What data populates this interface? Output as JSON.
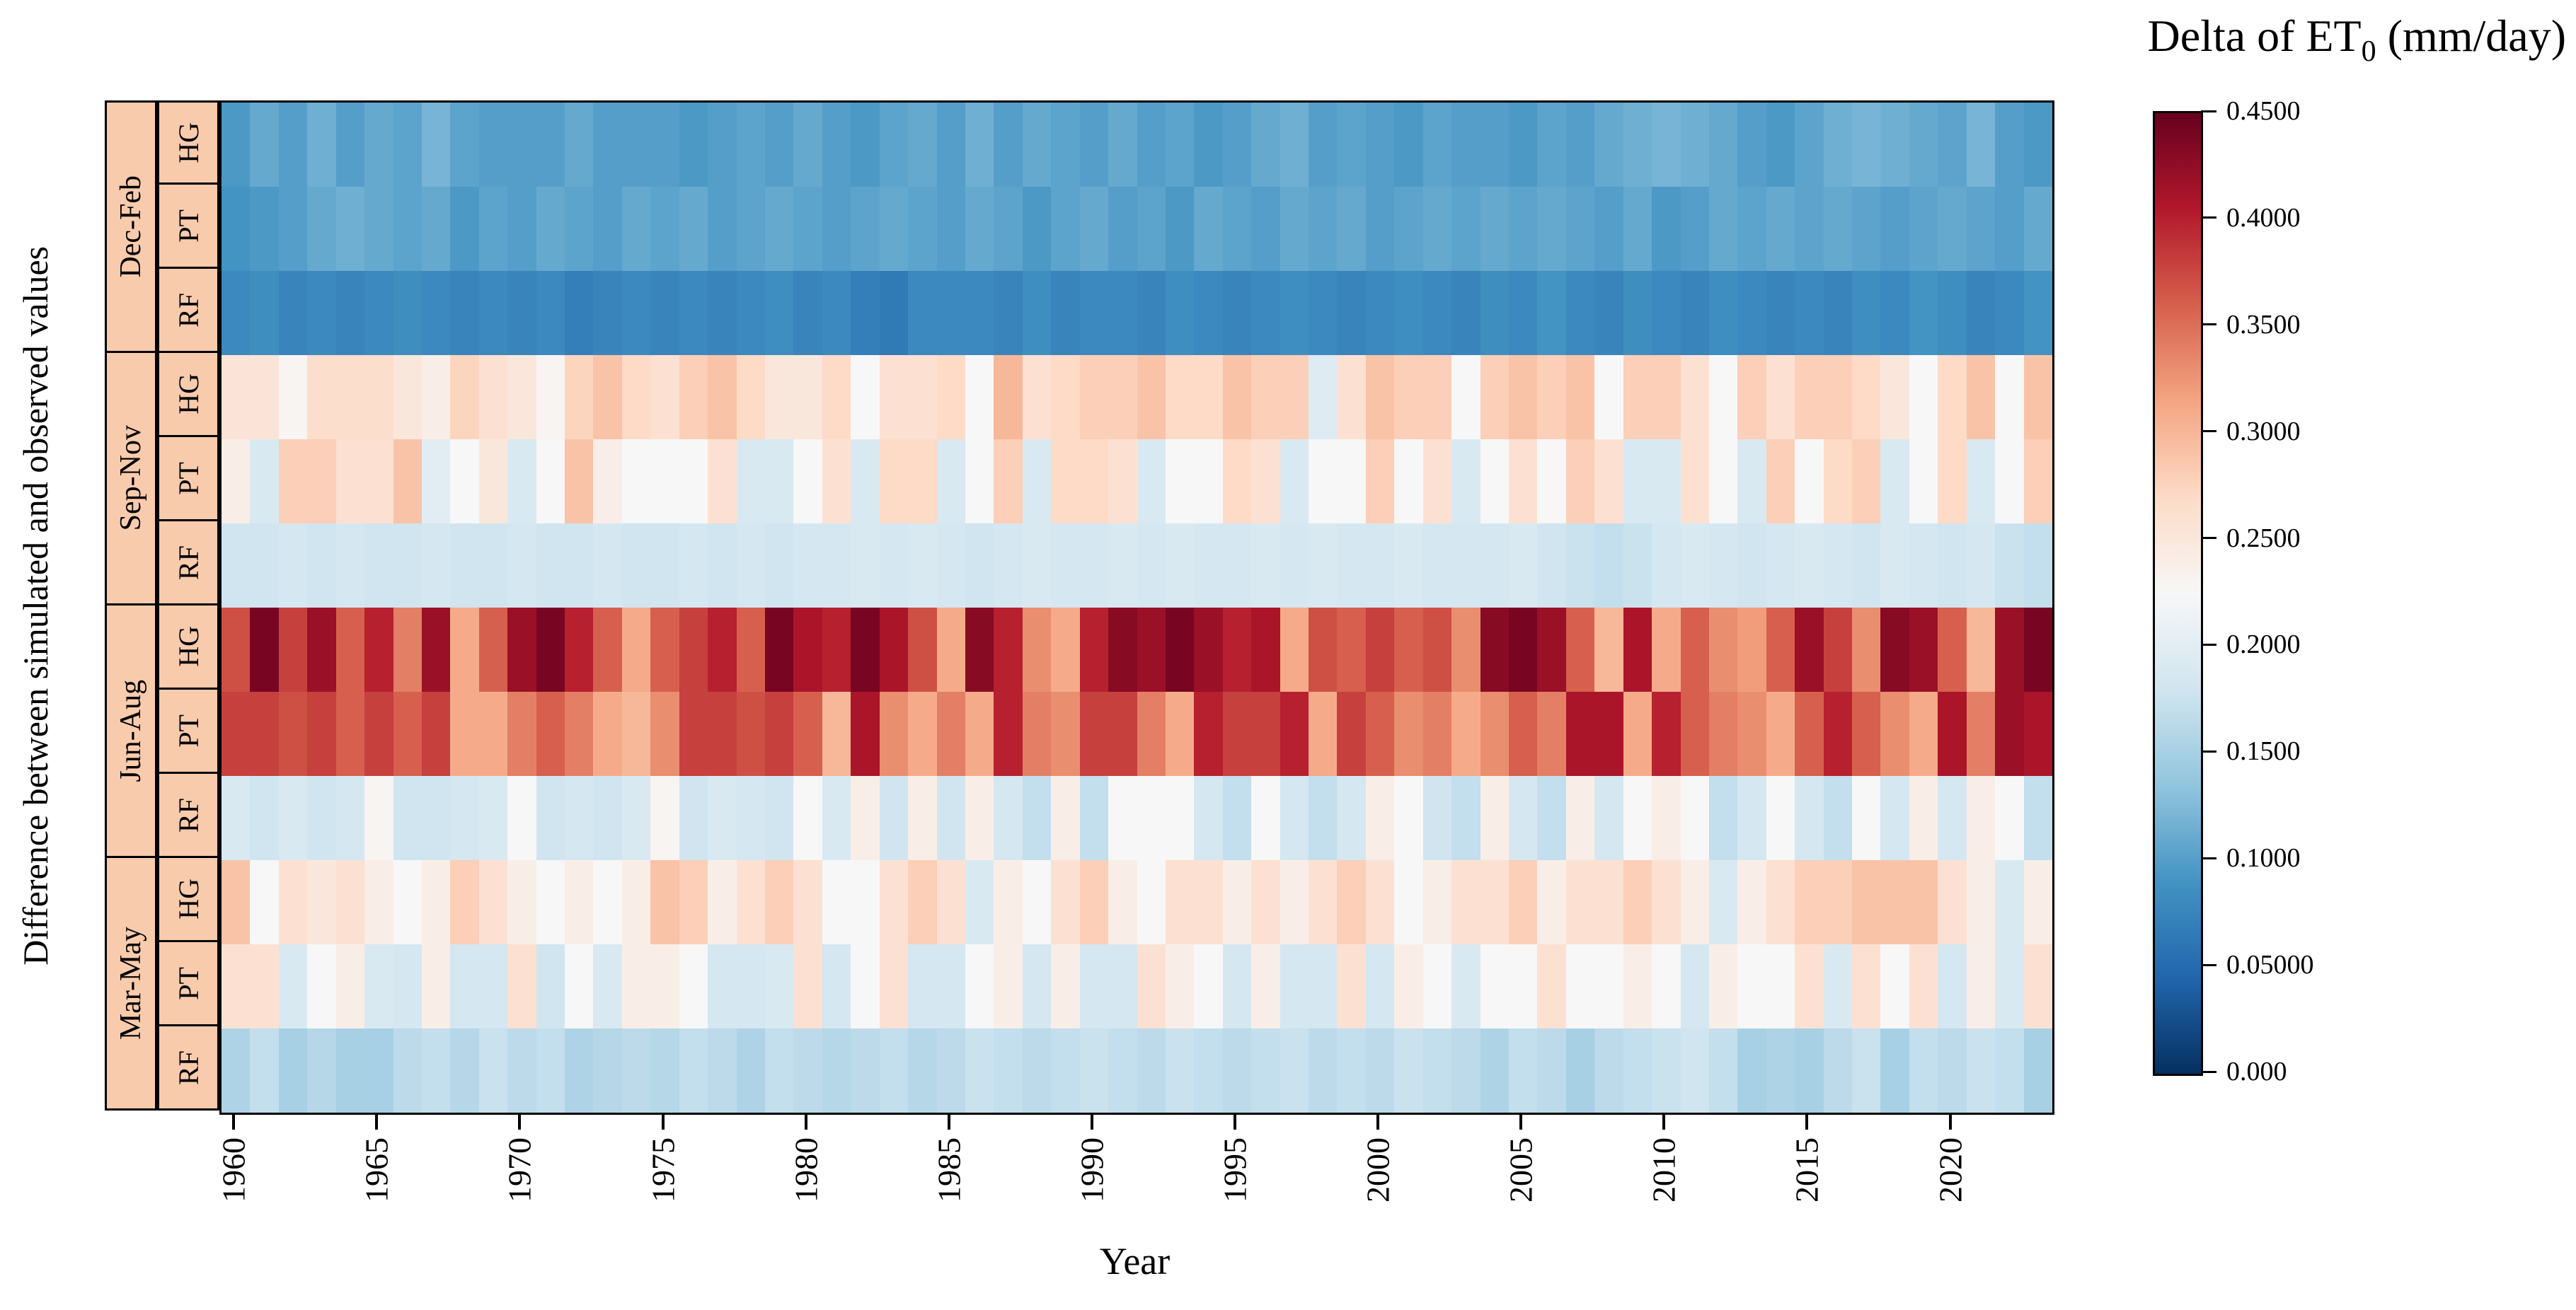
{
  "colorbar_title": {
    "prefix": "Delta of ET",
    "sub": "0",
    "suffix": " (mm/day)"
  },
  "y_axis": {
    "label": "Difference between simulated and observed values"
  },
  "x_axis": {
    "label": "Year",
    "tick_years": [
      1960,
      1965,
      1970,
      1975,
      1980,
      1985,
      1990,
      1995,
      2000,
      2005,
      2010,
      2015,
      2020
    ]
  },
  "colorbar": {
    "tick_labels": [
      "0.4500",
      "0.4000",
      "0.3500",
      "0.3000",
      "0.2500",
      "0.2000",
      "0.1500",
      "0.1000",
      "0.05000",
      "0.000"
    ],
    "tick_values": [
      0.45,
      0.4,
      0.35,
      0.3,
      0.25,
      0.2,
      0.15,
      0.1,
      0.05,
      0.0
    ],
    "min": 0.0,
    "max": 0.45,
    "colormap": [
      "#053061",
      "#2166ac",
      "#4393c3",
      "#92c5de",
      "#d1e5f0",
      "#f7f7f7",
      "#fddbc7",
      "#f4a582",
      "#d6604d",
      "#b2182b",
      "#67001f"
    ]
  },
  "colors": {
    "label_bg": "#F8CBAD",
    "border": "#000000"
  },
  "chart_data": {
    "type": "heatmap",
    "title": "Delta of ET0 (mm/day)",
    "xlabel": "Year",
    "ylabel": "Difference between simulated and observed values",
    "x_start": 1960,
    "x_end": 2023,
    "value_range": [
      0.0,
      0.45
    ],
    "legend_position": "right-colorbar",
    "groups": [
      {
        "season": "Dec-Feb",
        "methods": [
          "HG",
          "PT",
          "RF"
        ]
      },
      {
        "season": "Sep-Nov",
        "methods": [
          "HG",
          "PT",
          "RF"
        ]
      },
      {
        "season": "Jun-Aug",
        "methods": [
          "HG",
          "PT",
          "RF"
        ]
      },
      {
        "season": "Mar-May",
        "methods": [
          "HG",
          "PT",
          "RF"
        ]
      }
    ],
    "series": [
      {
        "season": "Dec-Feb",
        "method": "HG",
        "values": [
          0.095,
          0.11,
          0.1,
          0.115,
          0.1,
          0.11,
          0.105,
          0.12,
          0.105,
          0.1,
          0.1,
          0.1,
          0.11,
          0.1,
          0.1,
          0.1,
          0.095,
          0.1,
          0.105,
          0.1,
          0.11,
          0.1,
          0.095,
          0.105,
          0.11,
          0.1,
          0.115,
          0.1,
          0.11,
          0.105,
          0.1,
          0.11,
          0.1,
          0.105,
          0.095,
          0.1,
          0.11,
          0.115,
          0.1,
          0.105,
          0.1,
          0.095,
          0.105,
          0.1,
          0.1,
          0.095,
          0.105,
          0.1,
          0.11,
          0.115,
          0.12,
          0.115,
          0.11,
          0.1,
          0.095,
          0.105,
          0.115,
          0.12,
          0.115,
          0.11,
          0.105,
          0.12,
          0.1,
          0.095
        ]
      },
      {
        "season": "Dec-Feb",
        "method": "PT",
        "values": [
          0.09,
          0.095,
          0.1,
          0.11,
          0.115,
          0.11,
          0.105,
          0.11,
          0.095,
          0.105,
          0.1,
          0.11,
          0.105,
          0.1,
          0.11,
          0.105,
          0.11,
          0.1,
          0.105,
          0.11,
          0.105,
          0.1,
          0.105,
          0.11,
          0.105,
          0.1,
          0.11,
          0.105,
          0.095,
          0.105,
          0.11,
          0.1,
          0.105,
          0.095,
          0.11,
          0.105,
          0.1,
          0.11,
          0.105,
          0.11,
          0.1,
          0.105,
          0.11,
          0.105,
          0.11,
          0.105,
          0.11,
          0.105,
          0.1,
          0.11,
          0.095,
          0.1,
          0.11,
          0.105,
          0.11,
          0.105,
          0.11,
          0.105,
          0.1,
          0.105,
          0.11,
          0.105,
          0.1,
          0.11
        ]
      },
      {
        "season": "Dec-Feb",
        "method": "RF",
        "values": [
          0.08,
          0.085,
          0.075,
          0.08,
          0.075,
          0.08,
          0.085,
          0.08,
          0.075,
          0.08,
          0.075,
          0.08,
          0.07,
          0.075,
          0.08,
          0.075,
          0.08,
          0.075,
          0.08,
          0.085,
          0.075,
          0.08,
          0.07,
          0.065,
          0.08,
          0.08,
          0.08,
          0.075,
          0.085,
          0.075,
          0.08,
          0.08,
          0.075,
          0.085,
          0.08,
          0.075,
          0.08,
          0.085,
          0.08,
          0.075,
          0.08,
          0.085,
          0.08,
          0.075,
          0.085,
          0.08,
          0.09,
          0.08,
          0.075,
          0.085,
          0.08,
          0.075,
          0.085,
          0.08,
          0.075,
          0.08,
          0.075,
          0.085,
          0.08,
          0.09,
          0.085,
          0.075,
          0.08,
          0.09
        ]
      },
      {
        "season": "Sep-Nov",
        "method": "HG",
        "values": [
          0.255,
          0.255,
          0.23,
          0.265,
          0.265,
          0.265,
          0.25,
          0.24,
          0.275,
          0.26,
          0.25,
          0.23,
          0.275,
          0.29,
          0.27,
          0.26,
          0.28,
          0.29,
          0.27,
          0.25,
          0.25,
          0.27,
          0.225,
          0.26,
          0.26,
          0.27,
          0.225,
          0.3,
          0.26,
          0.27,
          0.28,
          0.28,
          0.29,
          0.27,
          0.27,
          0.29,
          0.28,
          0.28,
          0.195,
          0.26,
          0.29,
          0.28,
          0.28,
          0.225,
          0.28,
          0.29,
          0.28,
          0.29,
          0.225,
          0.28,
          0.28,
          0.26,
          0.225,
          0.28,
          0.26,
          0.28,
          0.28,
          0.27,
          0.25,
          0.225,
          0.27,
          0.29,
          0.225,
          0.29
        ]
      },
      {
        "season": "Sep-Nov",
        "method": "PT",
        "values": [
          0.24,
          0.19,
          0.28,
          0.28,
          0.26,
          0.26,
          0.29,
          0.2,
          0.225,
          0.25,
          0.19,
          0.225,
          0.29,
          0.24,
          0.225,
          0.225,
          0.225,
          0.26,
          0.19,
          0.19,
          0.225,
          0.26,
          0.19,
          0.27,
          0.27,
          0.19,
          0.225,
          0.28,
          0.19,
          0.27,
          0.27,
          0.26,
          0.19,
          0.225,
          0.225,
          0.27,
          0.26,
          0.19,
          0.225,
          0.225,
          0.28,
          0.225,
          0.26,
          0.19,
          0.225,
          0.26,
          0.225,
          0.28,
          0.26,
          0.19,
          0.19,
          0.26,
          0.225,
          0.19,
          0.28,
          0.225,
          0.27,
          0.28,
          0.19,
          0.225,
          0.27,
          0.19,
          0.225,
          0.28
        ]
      },
      {
        "season": "Sep-Nov",
        "method": "RF",
        "values": [
          0.18,
          0.18,
          0.185,
          0.18,
          0.185,
          0.18,
          0.18,
          0.185,
          0.18,
          0.18,
          0.185,
          0.18,
          0.18,
          0.185,
          0.18,
          0.18,
          0.185,
          0.18,
          0.185,
          0.18,
          0.185,
          0.185,
          0.19,
          0.185,
          0.19,
          0.185,
          0.18,
          0.185,
          0.19,
          0.185,
          0.185,
          0.19,
          0.185,
          0.19,
          0.185,
          0.185,
          0.19,
          0.185,
          0.19,
          0.185,
          0.185,
          0.19,
          0.185,
          0.185,
          0.185,
          0.19,
          0.18,
          0.175,
          0.17,
          0.175,
          0.185,
          0.19,
          0.185,
          0.18,
          0.185,
          0.19,
          0.185,
          0.18,
          0.19,
          0.185,
          0.18,
          0.185,
          0.175,
          0.17
        ]
      },
      {
        "season": "Jun-Aug",
        "method": "HG",
        "values": [
          0.37,
          0.44,
          0.38,
          0.42,
          0.36,
          0.4,
          0.34,
          0.42,
          0.31,
          0.36,
          0.42,
          0.44,
          0.4,
          0.36,
          0.31,
          0.36,
          0.38,
          0.4,
          0.36,
          0.44,
          0.41,
          0.4,
          0.44,
          0.41,
          0.37,
          0.31,
          0.43,
          0.4,
          0.33,
          0.31,
          0.4,
          0.43,
          0.42,
          0.44,
          0.42,
          0.4,
          0.41,
          0.31,
          0.37,
          0.36,
          0.38,
          0.36,
          0.37,
          0.33,
          0.43,
          0.44,
          0.42,
          0.36,
          0.3,
          0.41,
          0.31,
          0.36,
          0.33,
          0.32,
          0.36,
          0.42,
          0.38,
          0.33,
          0.43,
          0.42,
          0.36,
          0.3,
          0.42,
          0.44
        ]
      },
      {
        "season": "Jun-Aug",
        "method": "PT",
        "values": [
          0.38,
          0.38,
          0.37,
          0.38,
          0.36,
          0.38,
          0.36,
          0.38,
          0.31,
          0.31,
          0.34,
          0.36,
          0.34,
          0.31,
          0.3,
          0.33,
          0.38,
          0.38,
          0.37,
          0.38,
          0.36,
          0.3,
          0.41,
          0.33,
          0.31,
          0.34,
          0.31,
          0.4,
          0.34,
          0.33,
          0.38,
          0.38,
          0.34,
          0.31,
          0.4,
          0.38,
          0.38,
          0.4,
          0.31,
          0.38,
          0.36,
          0.33,
          0.34,
          0.31,
          0.33,
          0.36,
          0.34,
          0.41,
          0.41,
          0.31,
          0.4,
          0.36,
          0.34,
          0.33,
          0.31,
          0.36,
          0.4,
          0.36,
          0.33,
          0.31,
          0.41,
          0.34,
          0.42,
          0.41
        ]
      },
      {
        "season": "Jun-Aug",
        "method": "RF",
        "values": [
          0.19,
          0.18,
          0.19,
          0.18,
          0.185,
          0.23,
          0.18,
          0.18,
          0.185,
          0.19,
          0.225,
          0.18,
          0.185,
          0.18,
          0.19,
          0.23,
          0.18,
          0.19,
          0.185,
          0.18,
          0.225,
          0.19,
          0.24,
          0.18,
          0.24,
          0.18,
          0.24,
          0.185,
          0.17,
          0.24,
          0.17,
          0.225,
          0.225,
          0.225,
          0.185,
          0.17,
          0.225,
          0.185,
          0.17,
          0.185,
          0.24,
          0.225,
          0.18,
          0.17,
          0.24,
          0.185,
          0.17,
          0.24,
          0.185,
          0.225,
          0.24,
          0.225,
          0.17,
          0.185,
          0.225,
          0.185,
          0.17,
          0.225,
          0.185,
          0.24,
          0.185,
          0.24,
          0.225,
          0.17
        ]
      },
      {
        "season": "Mar-May",
        "method": "HG",
        "values": [
          0.29,
          0.225,
          0.26,
          0.25,
          0.26,
          0.24,
          0.225,
          0.24,
          0.28,
          0.26,
          0.24,
          0.225,
          0.24,
          0.225,
          0.24,
          0.29,
          0.28,
          0.24,
          0.26,
          0.28,
          0.26,
          0.225,
          0.225,
          0.26,
          0.28,
          0.26,
          0.19,
          0.24,
          0.225,
          0.26,
          0.28,
          0.24,
          0.225,
          0.26,
          0.26,
          0.24,
          0.26,
          0.24,
          0.26,
          0.28,
          0.26,
          0.225,
          0.24,
          0.26,
          0.26,
          0.28,
          0.24,
          0.26,
          0.26,
          0.28,
          0.26,
          0.24,
          0.19,
          0.24,
          0.26,
          0.28,
          0.28,
          0.29,
          0.29,
          0.29,
          0.26,
          0.24,
          0.19,
          0.24
        ]
      },
      {
        "season": "Mar-May",
        "method": "PT",
        "values": [
          0.26,
          0.26,
          0.19,
          0.225,
          0.24,
          0.19,
          0.185,
          0.24,
          0.185,
          0.185,
          0.26,
          0.18,
          0.225,
          0.19,
          0.24,
          0.24,
          0.225,
          0.185,
          0.185,
          0.19,
          0.26,
          0.185,
          0.225,
          0.26,
          0.185,
          0.185,
          0.225,
          0.24,
          0.185,
          0.24,
          0.185,
          0.185,
          0.26,
          0.24,
          0.225,
          0.185,
          0.24,
          0.185,
          0.185,
          0.26,
          0.185,
          0.24,
          0.225,
          0.19,
          0.225,
          0.225,
          0.26,
          0.225,
          0.225,
          0.24,
          0.225,
          0.185,
          0.24,
          0.225,
          0.225,
          0.26,
          0.19,
          0.26,
          0.225,
          0.26,
          0.185,
          0.24,
          0.19,
          0.26
        ]
      },
      {
        "season": "Mar-May",
        "method": "RF",
        "values": [
          0.155,
          0.17,
          0.15,
          0.16,
          0.15,
          0.15,
          0.165,
          0.17,
          0.16,
          0.175,
          0.165,
          0.17,
          0.155,
          0.16,
          0.165,
          0.16,
          0.17,
          0.165,
          0.155,
          0.17,
          0.165,
          0.16,
          0.165,
          0.17,
          0.16,
          0.165,
          0.175,
          0.17,
          0.165,
          0.17,
          0.175,
          0.17,
          0.165,
          0.175,
          0.17,
          0.165,
          0.17,
          0.175,
          0.165,
          0.17,
          0.165,
          0.175,
          0.17,
          0.165,
          0.155,
          0.17,
          0.165,
          0.15,
          0.165,
          0.17,
          0.175,
          0.18,
          0.17,
          0.15,
          0.155,
          0.15,
          0.165,
          0.175,
          0.15,
          0.17,
          0.165,
          0.175,
          0.17,
          0.15
        ]
      }
    ]
  }
}
